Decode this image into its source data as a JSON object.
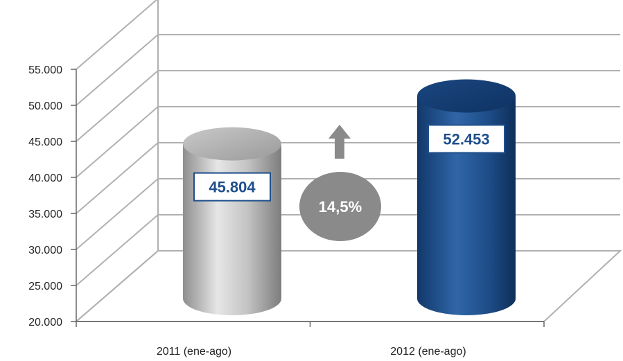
{
  "chart_data": {
    "type": "bar",
    "style": "3d-cylinder",
    "categories": [
      "2011 (ene-ago)",
      "2012 (ene-ago)"
    ],
    "values": [
      45804,
      52453
    ],
    "value_labels": [
      "45.804",
      "52.453"
    ],
    "ylim": [
      20000,
      55000
    ],
    "yticks": [
      20000,
      25000,
      30000,
      35000,
      40000,
      45000,
      50000,
      55000
    ],
    "ytick_labels": [
      "20.000",
      "25.000",
      "30.000",
      "35.000",
      "40.000",
      "45.000",
      "50.000",
      "55.000"
    ],
    "grid": true,
    "legend": "none",
    "annotation": {
      "text": "14,5%",
      "icon": "up-arrow-icon"
    },
    "colors": {
      "bar_2011": "#a9a9a9",
      "bar_2012": "#1f4f8b",
      "label_text": "#1f4f8b",
      "annotation_bubble": "#8a8a8a",
      "arrow": "#8a8a8a",
      "grid": "#b0b0b0"
    }
  }
}
